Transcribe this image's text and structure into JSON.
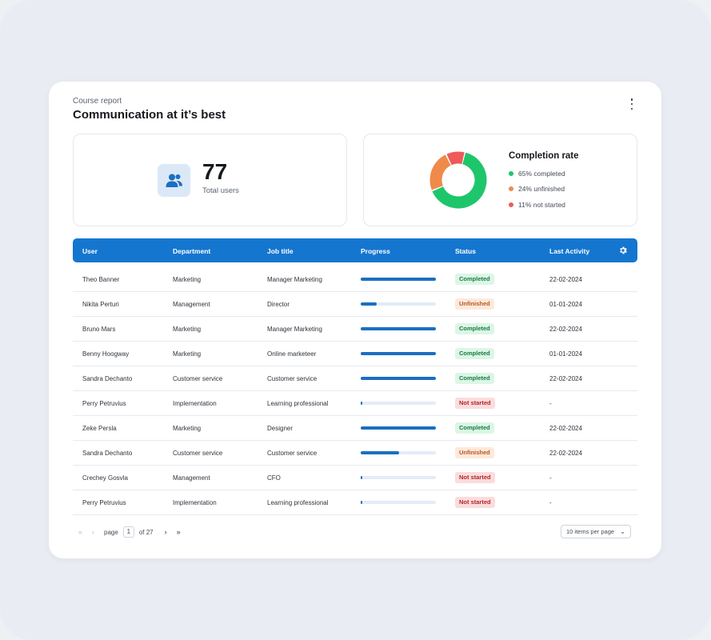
{
  "header": {
    "subtitle": "Course report",
    "title": "Communication at it’s best"
  },
  "icons": {
    "menu": "kebab-icon",
    "users": "users-icon",
    "settings": "gear-icon"
  },
  "stats": {
    "total_users": "77",
    "total_users_label": "Total users"
  },
  "completion": {
    "title": "Completion rate",
    "segments": [
      {
        "label": "65% completed",
        "value": 65,
        "color": "#1ec66b"
      },
      {
        "label": "24% unfinished",
        "value": 24,
        "color": "#f08a4b"
      },
      {
        "label": "11% not started",
        "value": 11,
        "color": "#ef5a5a"
      }
    ]
  },
  "table": {
    "columns": [
      "User",
      "Department",
      "Job title",
      "Progress",
      "Status",
      "Last Activity"
    ],
    "rows": [
      {
        "user": "Theo Banner",
        "department": "Marketing",
        "job": "Manager Marketing",
        "progress": 1.0,
        "status": "Completed",
        "last": "22-02-2024"
      },
      {
        "user": "Nikita Perturi",
        "department": "Management",
        "job": "Director",
        "progress": 0.21,
        "status": "Unfinished",
        "last": "01-01-2024"
      },
      {
        "user": "Bruno Mars",
        "department": "Marketing",
        "job": "Manager Marketing",
        "progress": 1.0,
        "status": "Completed",
        "last": "22-02-2024"
      },
      {
        "user": "Benny Hoogway",
        "department": "Marketing",
        "job": "Online marketeer",
        "progress": 1.0,
        "status": "Completed",
        "last": "01-01-2024"
      },
      {
        "user": "Sandra Dechanto",
        "department": "Customer service",
        "job": "Customer service",
        "progress": 1.0,
        "status": "Completed",
        "last": "22-02-2024"
      },
      {
        "user": "Perry Petruvius",
        "department": "Implementation",
        "job": "Learning professional",
        "progress": 0.02,
        "status": "Not started",
        "last": "-"
      },
      {
        "user": "Zeke Persla",
        "department": "Marketing",
        "job": "Designer",
        "progress": 1.0,
        "status": "Completed",
        "last": "22-02-2024"
      },
      {
        "user": "Sandra Dechanto",
        "department": "Customer service",
        "job": "Customer service",
        "progress": 0.51,
        "status": "Unfinished",
        "last": "22-02-2024"
      },
      {
        "user": "Crechey Gosvla",
        "department": "Management",
        "job": "CFO",
        "progress": 0.02,
        "status": "Not started",
        "last": "-"
      },
      {
        "user": "Perry Petruvius",
        "department": "Implementation",
        "job": "Learning professional",
        "progress": 0.02,
        "status": "Not started",
        "last": "-"
      }
    ]
  },
  "pagination": {
    "page_label": "page",
    "current_page": "1",
    "of_label": "of 27",
    "first": "«",
    "prev": "‹",
    "next": "›",
    "last": "»",
    "per_page": "10 items per page",
    "per_page_chevron": "⌄"
  }
}
